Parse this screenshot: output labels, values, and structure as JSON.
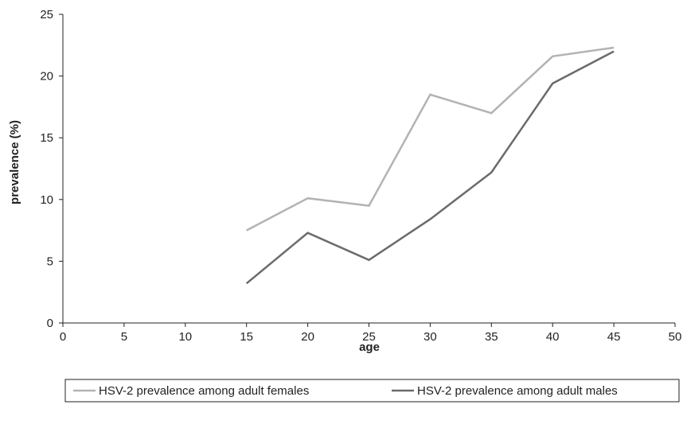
{
  "chart_data": {
    "type": "line",
    "title": "",
    "xlabel": "age",
    "ylabel": "prevalence (%)",
    "xlim": [
      0,
      50
    ],
    "ylim": [
      0,
      25
    ],
    "xticks": [
      0,
      5,
      10,
      15,
      20,
      25,
      30,
      35,
      40,
      45,
      50
    ],
    "yticks": [
      0,
      5,
      10,
      15,
      20,
      25
    ],
    "grid": false,
    "legend_position": "bottom",
    "series": [
      {
        "name": "HSV-2 prevalence among adult females",
        "color": "#b3b3b3",
        "x": [
          15,
          20,
          25,
          30,
          35,
          40,
          45
        ],
        "y": [
          7.5,
          10.1,
          9.5,
          18.5,
          17.0,
          21.6,
          22.3
        ]
      },
      {
        "name": "HSV-2 prevalence among adult males",
        "color": "#6b6b6b",
        "x": [
          15,
          20,
          25,
          30,
          35,
          40,
          45
        ],
        "y": [
          3.2,
          7.3,
          5.1,
          8.4,
          12.2,
          19.4,
          22.0
        ]
      }
    ]
  }
}
